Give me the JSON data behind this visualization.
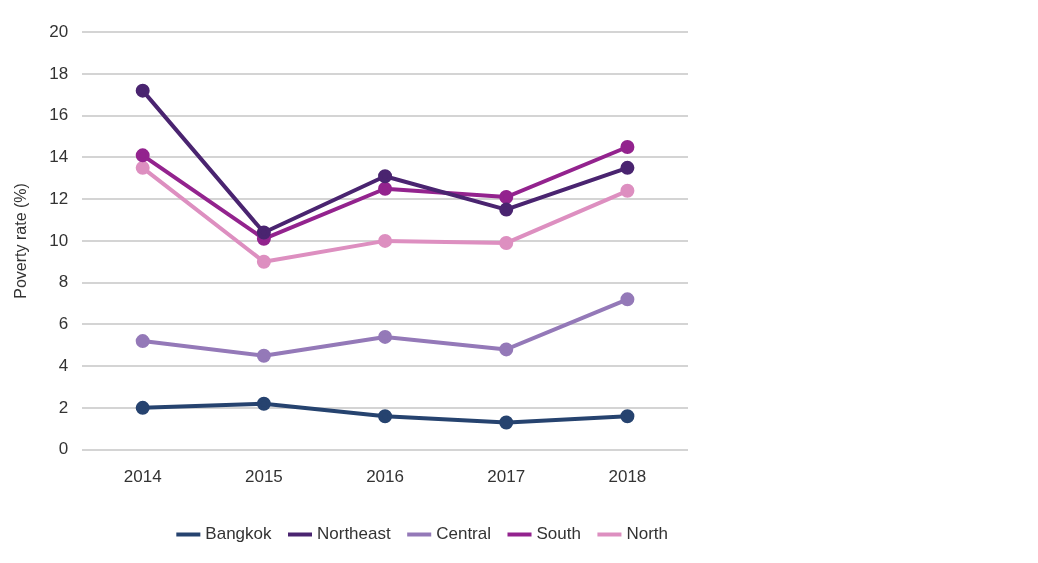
{
  "chart_data": {
    "type": "line",
    "ylabel": "Poverty rate (%)",
    "categories": [
      "2014",
      "2015",
      "2016",
      "2017",
      "2018"
    ],
    "series": [
      {
        "name": "Bangkok",
        "color": "#26436f",
        "values": [
          2.0,
          2.2,
          1.6,
          1.3,
          1.6
        ]
      },
      {
        "name": "Northeast",
        "color": "#4a2470",
        "values": [
          17.2,
          10.4,
          13.1,
          11.5,
          13.5
        ]
      },
      {
        "name": "Central",
        "color": "#9479b8",
        "values": [
          5.2,
          4.5,
          5.4,
          4.8,
          7.2
        ]
      },
      {
        "name": "South",
        "color": "#93238e",
        "values": [
          14.1,
          10.1,
          12.5,
          12.1,
          14.5
        ]
      },
      {
        "name": "North",
        "color": "#dd8fc0",
        "values": [
          13.5,
          9.0,
          10.0,
          9.9,
          12.4
        ]
      }
    ],
    "ylim": [
      0,
      20
    ],
    "yticks": [
      0,
      2,
      4,
      6,
      8,
      10,
      12,
      14,
      16,
      18,
      20
    ],
    "grid": "y",
    "legend": "bottom right",
    "marker": "circle",
    "line_style": "solid"
  }
}
